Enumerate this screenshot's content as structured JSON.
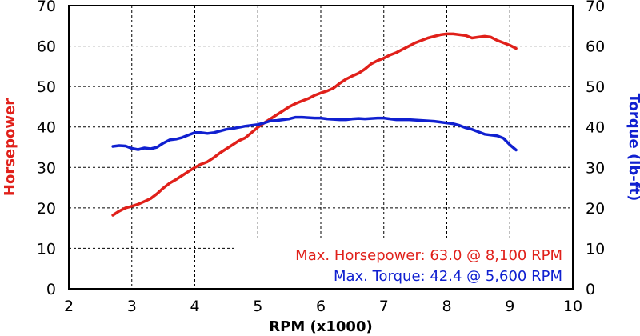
{
  "colors": {
    "horsepower": "#e0201a",
    "torque": "#1020d0",
    "grid": "#000000",
    "background": "#ffffff"
  },
  "chart_data": {
    "type": "line",
    "xlabel": "RPM (x1000)",
    "ylabel_left": "Horsepower",
    "ylabel_right": "Torque (lb-ft)",
    "xlim": [
      2,
      10
    ],
    "ylim": [
      0,
      70
    ],
    "x_ticks": [
      "2",
      "3",
      "4",
      "5",
      "6",
      "7",
      "8",
      "9",
      "10"
    ],
    "y_ticks": [
      "0",
      "10",
      "20",
      "30",
      "40",
      "50",
      "60",
      "70"
    ],
    "grid": true,
    "series": [
      {
        "name": "Horsepower",
        "axis": "left",
        "color": "#e0201a",
        "points": [
          [
            2.7,
            18.2
          ],
          [
            2.8,
            19.2
          ],
          [
            2.9,
            20.0
          ],
          [
            3.0,
            20.4
          ],
          [
            3.1,
            20.9
          ],
          [
            3.2,
            21.6
          ],
          [
            3.3,
            22.3
          ],
          [
            3.4,
            23.5
          ],
          [
            3.5,
            24.9
          ],
          [
            3.6,
            26.1
          ],
          [
            3.7,
            27.0
          ],
          [
            3.8,
            28.0
          ],
          [
            3.9,
            29.0
          ],
          [
            4.0,
            30.0
          ],
          [
            4.1,
            30.8
          ],
          [
            4.2,
            31.4
          ],
          [
            4.3,
            32.4
          ],
          [
            4.4,
            33.6
          ],
          [
            4.5,
            34.6
          ],
          [
            4.6,
            35.6
          ],
          [
            4.7,
            36.6
          ],
          [
            4.8,
            37.3
          ],
          [
            4.9,
            38.6
          ],
          [
            5.0,
            39.9
          ],
          [
            5.1,
            41.0
          ],
          [
            5.2,
            42.0
          ],
          [
            5.3,
            43.0
          ],
          [
            5.4,
            44.0
          ],
          [
            5.5,
            45.0
          ],
          [
            5.6,
            45.8
          ],
          [
            5.7,
            46.4
          ],
          [
            5.8,
            47.0
          ],
          [
            5.9,
            47.8
          ],
          [
            6.0,
            48.4
          ],
          [
            6.1,
            48.9
          ],
          [
            6.2,
            49.6
          ],
          [
            6.3,
            50.8
          ],
          [
            6.4,
            51.8
          ],
          [
            6.5,
            52.6
          ],
          [
            6.6,
            53.3
          ],
          [
            6.7,
            54.3
          ],
          [
            6.8,
            55.6
          ],
          [
            6.9,
            56.4
          ],
          [
            7.0,
            57.0
          ],
          [
            7.1,
            57.8
          ],
          [
            7.2,
            58.4
          ],
          [
            7.3,
            59.2
          ],
          [
            7.4,
            60.0
          ],
          [
            7.5,
            60.8
          ],
          [
            7.6,
            61.4
          ],
          [
            7.7,
            62.0
          ],
          [
            7.8,
            62.4
          ],
          [
            7.9,
            62.8
          ],
          [
            8.0,
            63.0
          ],
          [
            8.1,
            63.0
          ],
          [
            8.2,
            62.8
          ],
          [
            8.3,
            62.6
          ],
          [
            8.4,
            62.0
          ],
          [
            8.5,
            62.2
          ],
          [
            8.6,
            62.4
          ],
          [
            8.7,
            62.2
          ],
          [
            8.8,
            61.4
          ],
          [
            8.9,
            60.8
          ],
          [
            9.0,
            60.2
          ],
          [
            9.1,
            59.4
          ]
        ]
      },
      {
        "name": "Torque",
        "axis": "right",
        "color": "#1020d0",
        "points": [
          [
            2.7,
            35.2
          ],
          [
            2.8,
            35.4
          ],
          [
            2.9,
            35.3
          ],
          [
            3.0,
            34.7
          ],
          [
            3.1,
            34.4
          ],
          [
            3.2,
            34.8
          ],
          [
            3.3,
            34.6
          ],
          [
            3.4,
            35.0
          ],
          [
            3.5,
            36.0
          ],
          [
            3.6,
            36.8
          ],
          [
            3.7,
            37.0
          ],
          [
            3.8,
            37.4
          ],
          [
            3.9,
            38.0
          ],
          [
            4.0,
            38.6
          ],
          [
            4.1,
            38.6
          ],
          [
            4.2,
            38.4
          ],
          [
            4.3,
            38.6
          ],
          [
            4.4,
            39.0
          ],
          [
            4.5,
            39.4
          ],
          [
            4.6,
            39.6
          ],
          [
            4.7,
            39.9
          ],
          [
            4.8,
            40.2
          ],
          [
            4.9,
            40.4
          ],
          [
            5.0,
            40.6
          ],
          [
            5.1,
            41.0
          ],
          [
            5.2,
            41.5
          ],
          [
            5.3,
            41.6
          ],
          [
            5.4,
            41.8
          ],
          [
            5.5,
            42.0
          ],
          [
            5.6,
            42.4
          ],
          [
            5.7,
            42.4
          ],
          [
            5.8,
            42.3
          ],
          [
            5.9,
            42.2
          ],
          [
            6.0,
            42.2
          ],
          [
            6.1,
            42.0
          ],
          [
            6.2,
            41.9
          ],
          [
            6.3,
            41.8
          ],
          [
            6.4,
            41.8
          ],
          [
            6.5,
            42.0
          ],
          [
            6.6,
            42.1
          ],
          [
            6.7,
            42.0
          ],
          [
            6.8,
            42.1
          ],
          [
            6.9,
            42.2
          ],
          [
            7.0,
            42.2
          ],
          [
            7.1,
            42.0
          ],
          [
            7.2,
            41.8
          ],
          [
            7.3,
            41.8
          ],
          [
            7.4,
            41.8
          ],
          [
            7.5,
            41.7
          ],
          [
            7.6,
            41.6
          ],
          [
            7.7,
            41.5
          ],
          [
            7.8,
            41.4
          ],
          [
            7.9,
            41.2
          ],
          [
            8.0,
            41.0
          ],
          [
            8.1,
            40.8
          ],
          [
            8.2,
            40.4
          ],
          [
            8.3,
            39.8
          ],
          [
            8.4,
            39.4
          ],
          [
            8.5,
            38.8
          ],
          [
            8.6,
            38.2
          ],
          [
            8.7,
            38.0
          ],
          [
            8.8,
            37.8
          ],
          [
            8.9,
            37.2
          ],
          [
            9.0,
            35.6
          ],
          [
            9.1,
            34.3
          ]
        ]
      }
    ],
    "annotations": [
      {
        "text": "Max. Horsepower: 63.0 @ 8,100 RPM",
        "series": "Horsepower"
      },
      {
        "text": "Max. Torque: 42.4 @ 5,600 RPM",
        "series": "Torque"
      }
    ]
  }
}
